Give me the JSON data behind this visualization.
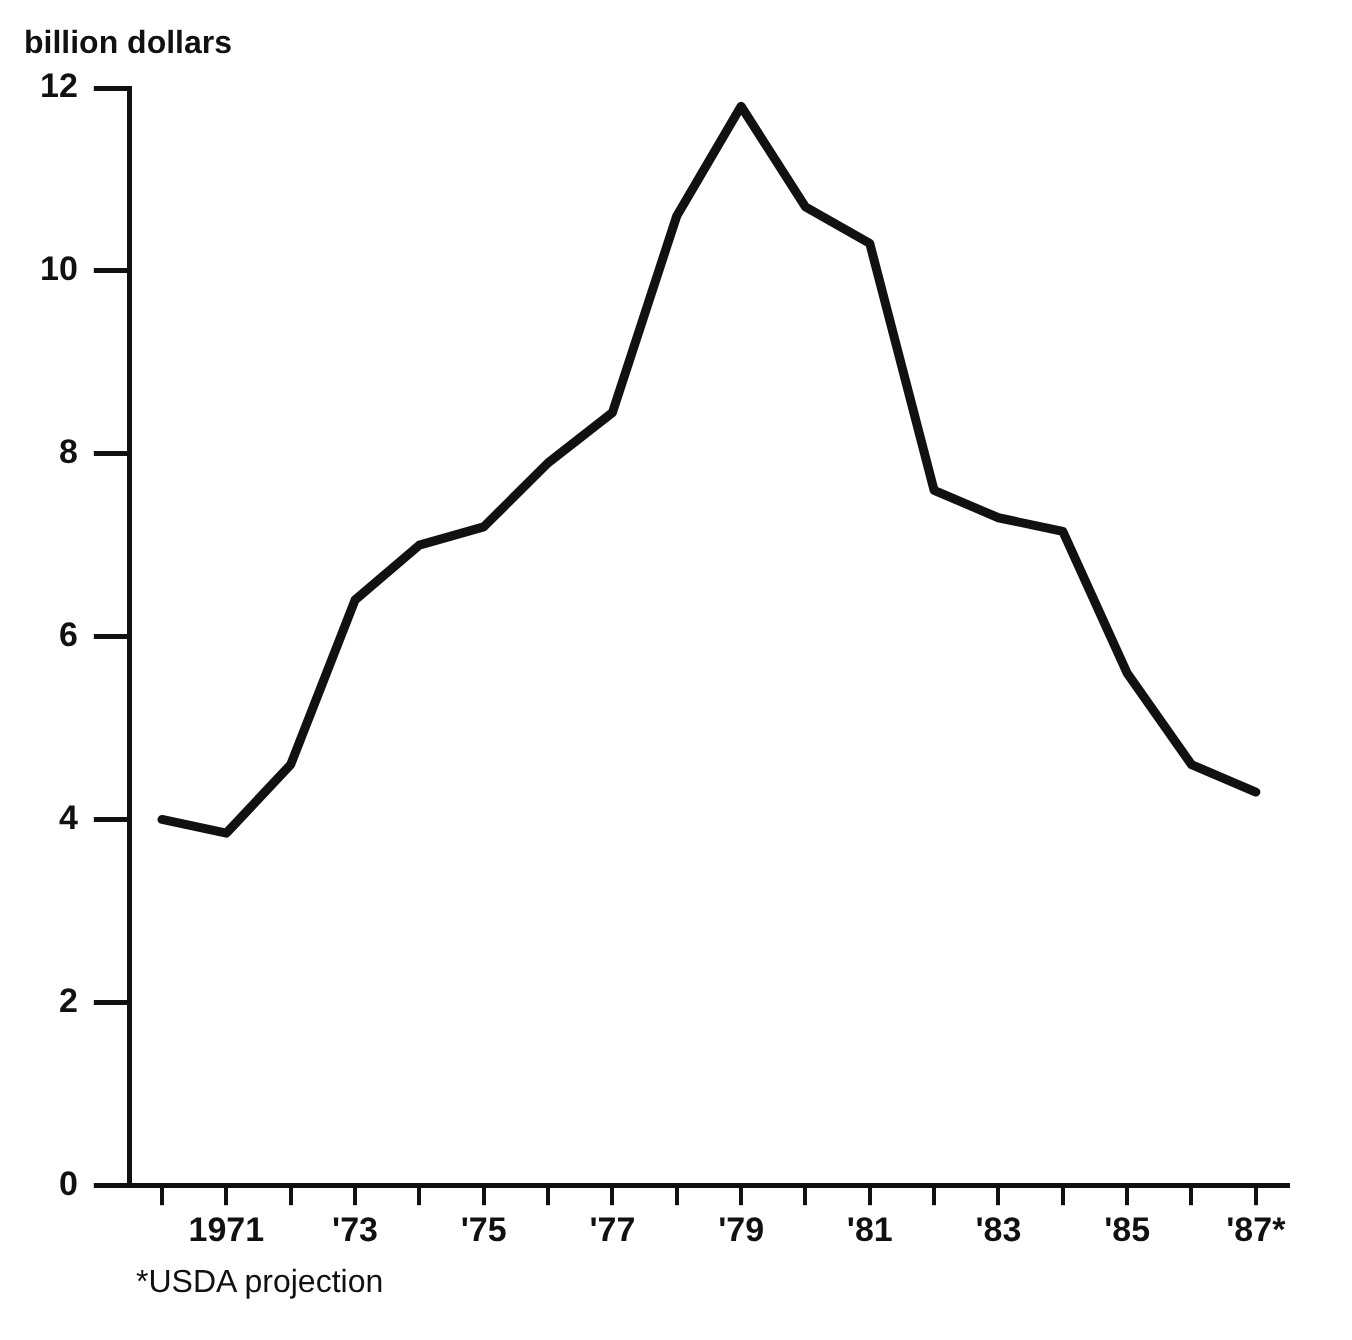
{
  "chart_data": {
    "type": "line",
    "ylabel": "billion dollars",
    "categories": [
      null,
      "1971",
      null,
      "'73",
      null,
      "'75",
      null,
      "'77",
      null,
      "'79",
      null,
      "'81",
      null,
      "'83",
      null,
      "'85",
      null,
      "'87*"
    ],
    "series": [
      {
        "color": "#111111",
        "values": [
          4.0,
          3.85,
          4.6,
          6.4,
          7.0,
          7.2,
          7.9,
          8.45,
          10.6,
          11.8,
          10.7,
          10.3,
          7.6,
          7.3,
          7.15,
          5.6,
          4.6,
          4.3
        ]
      }
    ],
    "ylim": [
      0,
      12
    ],
    "yticks": [
      0,
      2,
      4,
      6,
      8,
      10,
      12
    ],
    "grid": false,
    "legend": false,
    "marker": "none",
    "line_style": "solid",
    "annotations": [
      "*USDA projection"
    ]
  }
}
